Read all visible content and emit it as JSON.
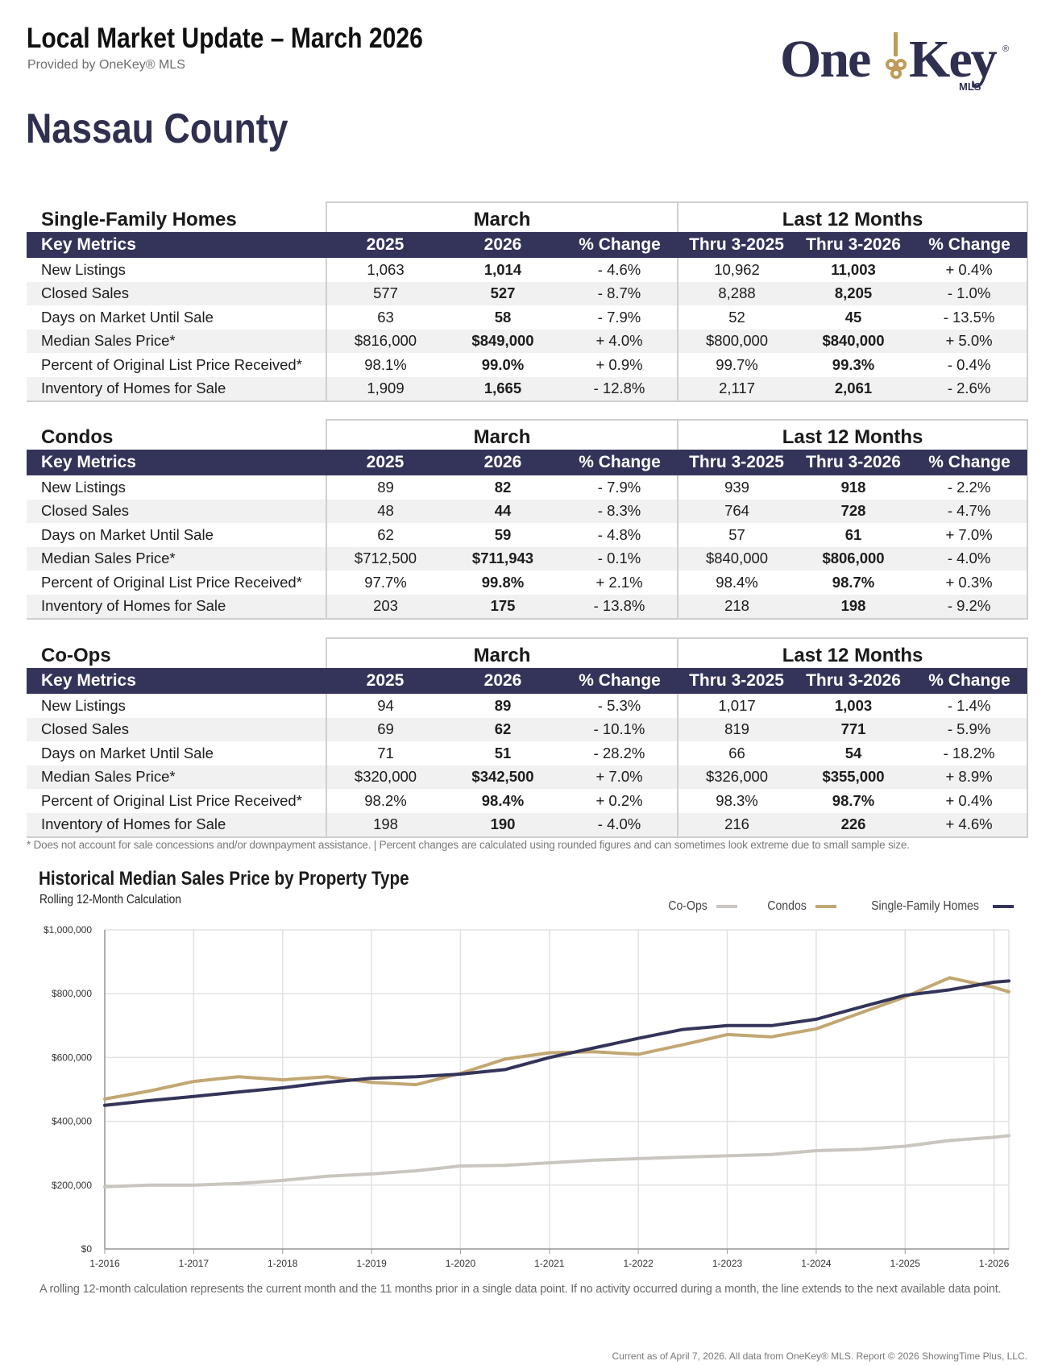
{
  "header": {
    "title": "Local Market Update – March 2026",
    "subtitle": "Provided by OneKey® MLS",
    "logo_text": "One Key",
    "logo_sub": "MLS",
    "county": "Nassau County"
  },
  "table_groups": {
    "month": "March",
    "year": "Last 12 Months"
  },
  "column_headers": [
    "Key Metrics",
    "2025",
    "2026",
    "% Change",
    "Thru 3-2025",
    "Thru 3-2026",
    "% Change"
  ],
  "sections": [
    {
      "title": "Single-Family Homes",
      "rows": [
        [
          "New Listings",
          "1,063",
          "1,014",
          "- 4.6%",
          "10,962",
          "11,003",
          "+ 0.4%"
        ],
        [
          "Closed Sales",
          "577",
          "527",
          "- 8.7%",
          "8,288",
          "8,205",
          "- 1.0%"
        ],
        [
          "Days on Market Until Sale",
          "63",
          "58",
          "- 7.9%",
          "52",
          "45",
          "- 13.5%"
        ],
        [
          "Median Sales Price*",
          "$816,000",
          "$849,000",
          "+ 4.0%",
          "$800,000",
          "$840,000",
          "+ 5.0%"
        ],
        [
          "Percent of Original List Price Received*",
          "98.1%",
          "99.0%",
          "+ 0.9%",
          "99.7%",
          "99.3%",
          "- 0.4%"
        ],
        [
          "Inventory of Homes for Sale",
          "1,909",
          "1,665",
          "- 12.8%",
          "2,117",
          "2,061",
          "- 2.6%"
        ]
      ]
    },
    {
      "title": "Condos",
      "rows": [
        [
          "New Listings",
          "89",
          "82",
          "- 7.9%",
          "939",
          "918",
          "- 2.2%"
        ],
        [
          "Closed Sales",
          "48",
          "44",
          "- 8.3%",
          "764",
          "728",
          "- 4.7%"
        ],
        [
          "Days on Market Until Sale",
          "62",
          "59",
          "- 4.8%",
          "57",
          "61",
          "+ 7.0%"
        ],
        [
          "Median Sales Price*",
          "$712,500",
          "$711,943",
          "- 0.1%",
          "$840,000",
          "$806,000",
          "- 4.0%"
        ],
        [
          "Percent of Original List Price Received*",
          "97.7%",
          "99.8%",
          "+ 2.1%",
          "98.4%",
          "98.7%",
          "+ 0.3%"
        ],
        [
          "Inventory of Homes for Sale",
          "203",
          "175",
          "- 13.8%",
          "218",
          "198",
          "- 9.2%"
        ]
      ]
    },
    {
      "title": "Co-Ops",
      "rows": [
        [
          "New Listings",
          "94",
          "89",
          "- 5.3%",
          "1,017",
          "1,003",
          "- 1.4%"
        ],
        [
          "Closed Sales",
          "69",
          "62",
          "- 10.1%",
          "819",
          "771",
          "- 5.9%"
        ],
        [
          "Days on Market Until Sale",
          "71",
          "51",
          "- 28.2%",
          "66",
          "54",
          "- 18.2%"
        ],
        [
          "Median Sales Price*",
          "$320,000",
          "$342,500",
          "+ 7.0%",
          "$326,000",
          "$355,000",
          "+ 8.9%"
        ],
        [
          "Percent of Original List Price Received*",
          "98.2%",
          "98.4%",
          "+ 0.2%",
          "98.3%",
          "98.7%",
          "+ 0.4%"
        ],
        [
          "Inventory of Homes for Sale",
          "198",
          "190",
          "- 4.0%",
          "216",
          "226",
          "+ 4.6%"
        ]
      ]
    }
  ],
  "footnote": "* Does not account for sale concessions and/or downpayment assistance. | Percent changes are calculated using rounded figures and can sometimes look extreme due to small sample size.",
  "chart_note": "A rolling 12-month calculation represents the current month and the 11 months prior in a single data point. If no activity occurred during a month, the line extends to the next available data point.",
  "copyright": "Current as of April 7, 2026. All data from OneKey® MLS. Report © 2026 ShowingTime Plus, LLC.",
  "colors": {
    "navy": "#34345a",
    "gold": "#c2a773",
    "gray": "#c9c6bf",
    "logo_gold": "#c09a5b"
  },
  "chart_data": {
    "type": "line",
    "title": "Historical Median Sales Price by Property Type",
    "subtitle": "Rolling 12-Month Calculation",
    "x_ticks": [
      "1-2016",
      "1-2017",
      "1-2018",
      "1-2019",
      "1-2020",
      "1-2021",
      "1-2022",
      "1-2023",
      "1-2024",
      "1-2025",
      "1-2026"
    ],
    "y_ticks": [
      "$0",
      "$200,000",
      "$400,000",
      "$600,000",
      "$800,000",
      "$1,000,000"
    ],
    "ylim": [
      0,
      1000000
    ],
    "xlim": [
      "1-2016",
      "3-2026"
    ],
    "grid": true,
    "legend_position": "top-right",
    "x": [
      "1-2016",
      "7-2016",
      "1-2017",
      "7-2017",
      "1-2018",
      "7-2018",
      "1-2019",
      "7-2019",
      "1-2020",
      "7-2020",
      "1-2021",
      "7-2021",
      "1-2022",
      "7-2022",
      "1-2023",
      "7-2023",
      "1-2024",
      "7-2024",
      "1-2025",
      "7-2025",
      "1-2026",
      "3-2026"
    ],
    "series": [
      {
        "name": "Co-Ops",
        "color": "#c9c6bf",
        "values": [
          195000,
          200000,
          200000,
          205000,
          215000,
          228000,
          235000,
          245000,
          260000,
          262000,
          270000,
          278000,
          283000,
          288000,
          292000,
          296000,
          308000,
          312000,
          322000,
          340000,
          350000,
          355000
        ]
      },
      {
        "name": "Condos",
        "color": "#c2a773",
        "values": [
          470000,
          495000,
          525000,
          540000,
          530000,
          540000,
          522000,
          515000,
          550000,
          595000,
          615000,
          618000,
          610000,
          640000,
          672000,
          665000,
          690000,
          740000,
          790000,
          850000,
          820000,
          806000
        ]
      },
      {
        "name": "Single-Family Homes",
        "color": "#34345a",
        "values": [
          450000,
          465000,
          478000,
          492000,
          505000,
          522000,
          535000,
          540000,
          548000,
          562000,
          600000,
          630000,
          660000,
          688000,
          700000,
          700000,
          720000,
          758000,
          795000,
          812000,
          836000,
          840000
        ]
      }
    ]
  }
}
